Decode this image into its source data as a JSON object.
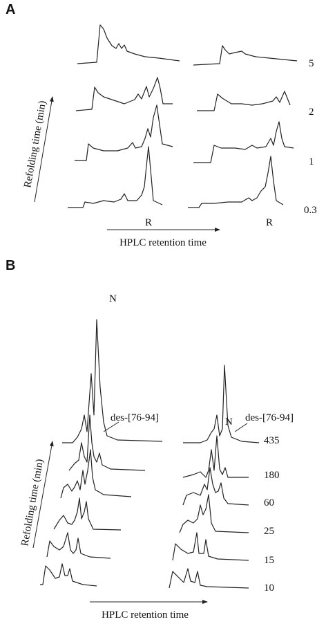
{
  "panels": [
    {
      "label": "A",
      "y_axis_label": "Refolding time (min)",
      "x_axis_label": "HPLC retention time",
      "time_labels": [
        "5",
        "2",
        "1",
        "0.3"
      ],
      "peak_labels": [
        "R",
        "R"
      ]
    },
    {
      "label": "B",
      "y_axis_label": "Refolding time (min)",
      "x_axis_label": "HPLC retention time",
      "time_labels": [
        "435",
        "180",
        "60",
        "25",
        "15",
        "10"
      ],
      "peak_labels": [
        "N",
        "N",
        "des-[76-94]",
        "des-[76-94]"
      ]
    }
  ]
}
